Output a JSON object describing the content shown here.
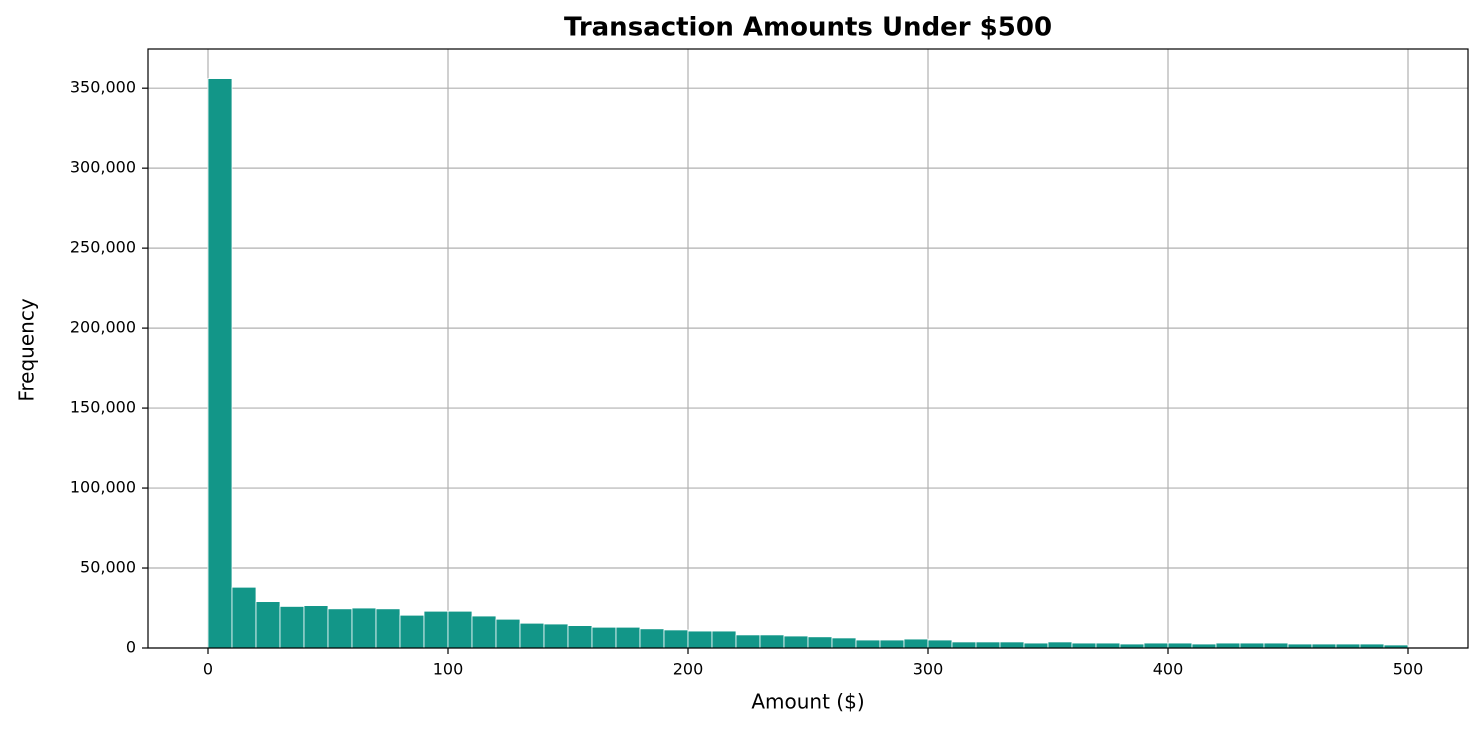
{
  "chart_data": {
    "type": "histogram",
    "title": "Transaction Amounts Under $500",
    "x_label": "Amount ($)",
    "y_label": "Frequency",
    "color": "#129688",
    "grid": true,
    "bins": [
      0,
      10,
      20,
      30,
      40,
      50,
      60,
      70,
      80,
      90,
      100,
      110,
      120,
      130,
      140,
      150,
      160,
      170,
      180,
      190,
      200,
      210,
      220,
      230,
      240,
      250,
      260,
      270,
      280,
      290,
      300,
      310,
      320,
      330,
      340,
      350,
      360,
      370,
      380,
      390,
      400,
      410,
      420,
      430,
      440,
      450,
      460,
      470,
      480,
      490,
      500
    ],
    "counts": [
      356000,
      38000,
      29000,
      26000,
      26500,
      24500,
      25000,
      24500,
      20500,
      23000,
      23000,
      20000,
      18000,
      15500,
      15000,
      14000,
      13000,
      13000,
      12000,
      11300,
      10600,
      10600,
      8200,
      8200,
      7500,
      7000,
      6300,
      5000,
      5000,
      5600,
      5000,
      3800,
      3800,
      3800,
      3100,
      3800,
      3100,
      3100,
      2500,
      3100,
      3100,
      2500,
      3100,
      3100,
      3100,
      2500,
      2500,
      2500,
      2500,
      1900
    ],
    "xlim": [
      -25,
      525
    ],
    "xticks": [
      0,
      100,
      200,
      300,
      400,
      500
    ],
    "ylim": [
      0,
      374500
    ],
    "yticks": [
      0,
      {
        "value": 50000,
        "label": "50,000"
      },
      {
        "value": 100000,
        "label": "100,000"
      },
      {
        "value": 150000,
        "label": "150,000"
      },
      {
        "value": 200000,
        "label": "200,000"
      },
      {
        "value": 250000,
        "label": "250,000"
      },
      {
        "value": 300000,
        "label": "300,000"
      },
      {
        "value": 350000,
        "label": "350,000"
      }
    ]
  }
}
